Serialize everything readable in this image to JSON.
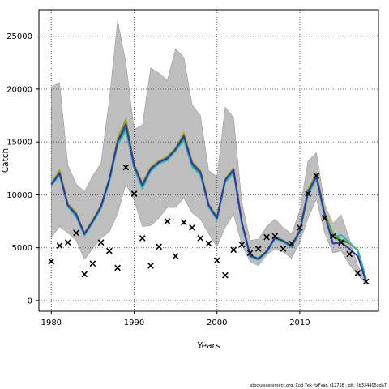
{
  "chart_data": {
    "type": "line",
    "xlabel": "Years",
    "ylabel": "Catch",
    "xlim": [
      1978.5,
      2019.5
    ],
    "ylim": [
      -1000,
      27500
    ],
    "xticks": [
      1980,
      1990,
      2000,
      2010
    ],
    "yticks": [
      0,
      5000,
      10000,
      15000,
      20000,
      25000
    ],
    "grid": true,
    "legend": "none",
    "years": [
      1980,
      1981,
      1982,
      1983,
      1984,
      1985,
      1986,
      1987,
      1988,
      1989,
      1990,
      1991,
      1992,
      1993,
      1994,
      1995,
      1996,
      1997,
      1998,
      1999,
      2000,
      2001,
      2002,
      2003,
      2004,
      2005,
      2006,
      2007,
      2008,
      2009,
      2010,
      2011,
      2012,
      2013,
      2014,
      2015,
      2016,
      2017,
      2018
    ],
    "band_upper": [
      20200,
      20600,
      12800,
      11000,
      10300,
      11800,
      13000,
      19000,
      26500,
      22500,
      16200,
      16600,
      22000,
      21500,
      20800,
      23800,
      23000,
      18500,
      17500,
      12300,
      11700,
      18300,
      17300,
      9300,
      5700,
      5800,
      7000,
      7700,
      6900,
      6300,
      8500,
      13200,
      14000,
      9100,
      7300,
      8100,
      5800,
      3300,
      2000
    ],
    "band_lower": [
      6000,
      7000,
      6400,
      5700,
      3900,
      4900,
      5900,
      6500,
      8200,
      11000,
      9500,
      7000,
      7100,
      7800,
      8800,
      8800,
      9700,
      8300,
      7700,
      6300,
      5100,
      6900,
      8200,
      5300,
      3700,
      3300,
      4300,
      4900,
      4600,
      4000,
      5500,
      7800,
      9600,
      6400,
      4500,
      4700,
      3400,
      2400,
      1600
    ],
    "series": [
      {
        "color": "#999900",
        "values": [
          11000,
          12300,
          9100,
          8300,
          6400,
          7600,
          9000,
          11600,
          15300,
          17100,
          12900,
          11100,
          12600,
          13200,
          13600,
          14400,
          15800,
          13100,
          12300,
          9100,
          7900,
          11500,
          12500,
          7500,
          4300,
          4000,
          4700,
          6000,
          5700,
          5200,
          6700,
          10500,
          12000,
          8300,
          6300,
          5700,
          5400,
          4800,
          2100
        ]
      },
      {
        "color": "#118811",
        "values": [
          10900,
          11900,
          8900,
          8000,
          6200,
          7400,
          8800,
          11300,
          14800,
          16300,
          12600,
          10700,
          12300,
          13000,
          13300,
          14200,
          15300,
          12800,
          12000,
          8900,
          7700,
          11300,
          12200,
          7300,
          4200,
          3900,
          4600,
          5900,
          5600,
          5100,
          6500,
          10100,
          11600,
          8000,
          6000,
          5700,
          5500,
          4700,
          2000
        ]
      },
      {
        "color": "#22bbbb",
        "values": [
          10850,
          11850,
          8850,
          7950,
          6150,
          7350,
          8700,
          11200,
          14700,
          16100,
          12500,
          10600,
          12250,
          12950,
          13250,
          14150,
          15150,
          12650,
          11900,
          8850,
          7650,
          11200,
          12100,
          7250,
          4150,
          3850,
          4550,
          5850,
          5550,
          5050,
          6450,
          10000,
          11500,
          7950,
          6000,
          6200,
          5500,
          4700,
          2000
        ]
      },
      {
        "color": "#3333aa",
        "values": [
          11000,
          12050,
          9000,
          8150,
          6300,
          7500,
          8900,
          11450,
          15000,
          16700,
          12750,
          10900,
          12450,
          13100,
          13450,
          14300,
          15550,
          12950,
          12150,
          9000,
          7800,
          11400,
          12350,
          7400,
          4250,
          3950,
          4650,
          5950,
          5650,
          5150,
          6600,
          10250,
          11750,
          8150,
          5400,
          5500,
          4900,
          4200,
          1800
        ]
      }
    ],
    "observed": [
      {
        "x": 1980,
        "y": 3700
      },
      {
        "x": 1981,
        "y": 5200
      },
      {
        "x": 1982,
        "y": 5500
      },
      {
        "x": 1983,
        "y": 6400
      },
      {
        "x": 1984,
        "y": 2500
      },
      {
        "x": 1985,
        "y": 3500
      },
      {
        "x": 1986,
        "y": 5500
      },
      {
        "x": 1987,
        "y": 4700
      },
      {
        "x": 1988,
        "y": 3100
      },
      {
        "x": 1989,
        "y": 12600
      },
      {
        "x": 1990,
        "y": 10100
      },
      {
        "x": 1991,
        "y": 5900
      },
      {
        "x": 1992,
        "y": 3300
      },
      {
        "x": 1993,
        "y": 5100
      },
      {
        "x": 1994,
        "y": 7500
      },
      {
        "x": 1995,
        "y": 4200
      },
      {
        "x": 1996,
        "y": 7400
      },
      {
        "x": 1997,
        "y": 6900
      },
      {
        "x": 1998,
        "y": 5900
      },
      {
        "x": 1999,
        "y": 5400
      },
      {
        "x": 2000,
        "y": 3800
      },
      {
        "x": 2001,
        "y": 2400
      },
      {
        "x": 2002,
        "y": 4800
      },
      {
        "x": 2003,
        "y": 5300
      },
      {
        "x": 2004,
        "y": 4500
      },
      {
        "x": 2005,
        "y": 4900
      },
      {
        "x": 2006,
        "y": 6000
      },
      {
        "x": 2007,
        "y": 6100
      },
      {
        "x": 2008,
        "y": 4900
      },
      {
        "x": 2009,
        "y": 5400
      },
      {
        "x": 2010,
        "y": 6900
      },
      {
        "x": 2011,
        "y": 10100
      },
      {
        "x": 2012,
        "y": 11800
      },
      {
        "x": 2013,
        "y": 7800
      },
      {
        "x": 2014,
        "y": 6100
      },
      {
        "x": 2015,
        "y": 5500
      },
      {
        "x": 2016,
        "y": 4400
      },
      {
        "x": 2017,
        "y": 2600
      },
      {
        "x": 2018,
        "y": 1800
      }
    ],
    "colors": {
      "band": "#bebebe",
      "band_edge": "#9a9a9a",
      "grid": "#555555",
      "marker": "#000000"
    }
  },
  "footer": {
    "text": "stockassessment.org, Cod 7ek fixFvar, r12758 , git: 5b334405cda7"
  }
}
